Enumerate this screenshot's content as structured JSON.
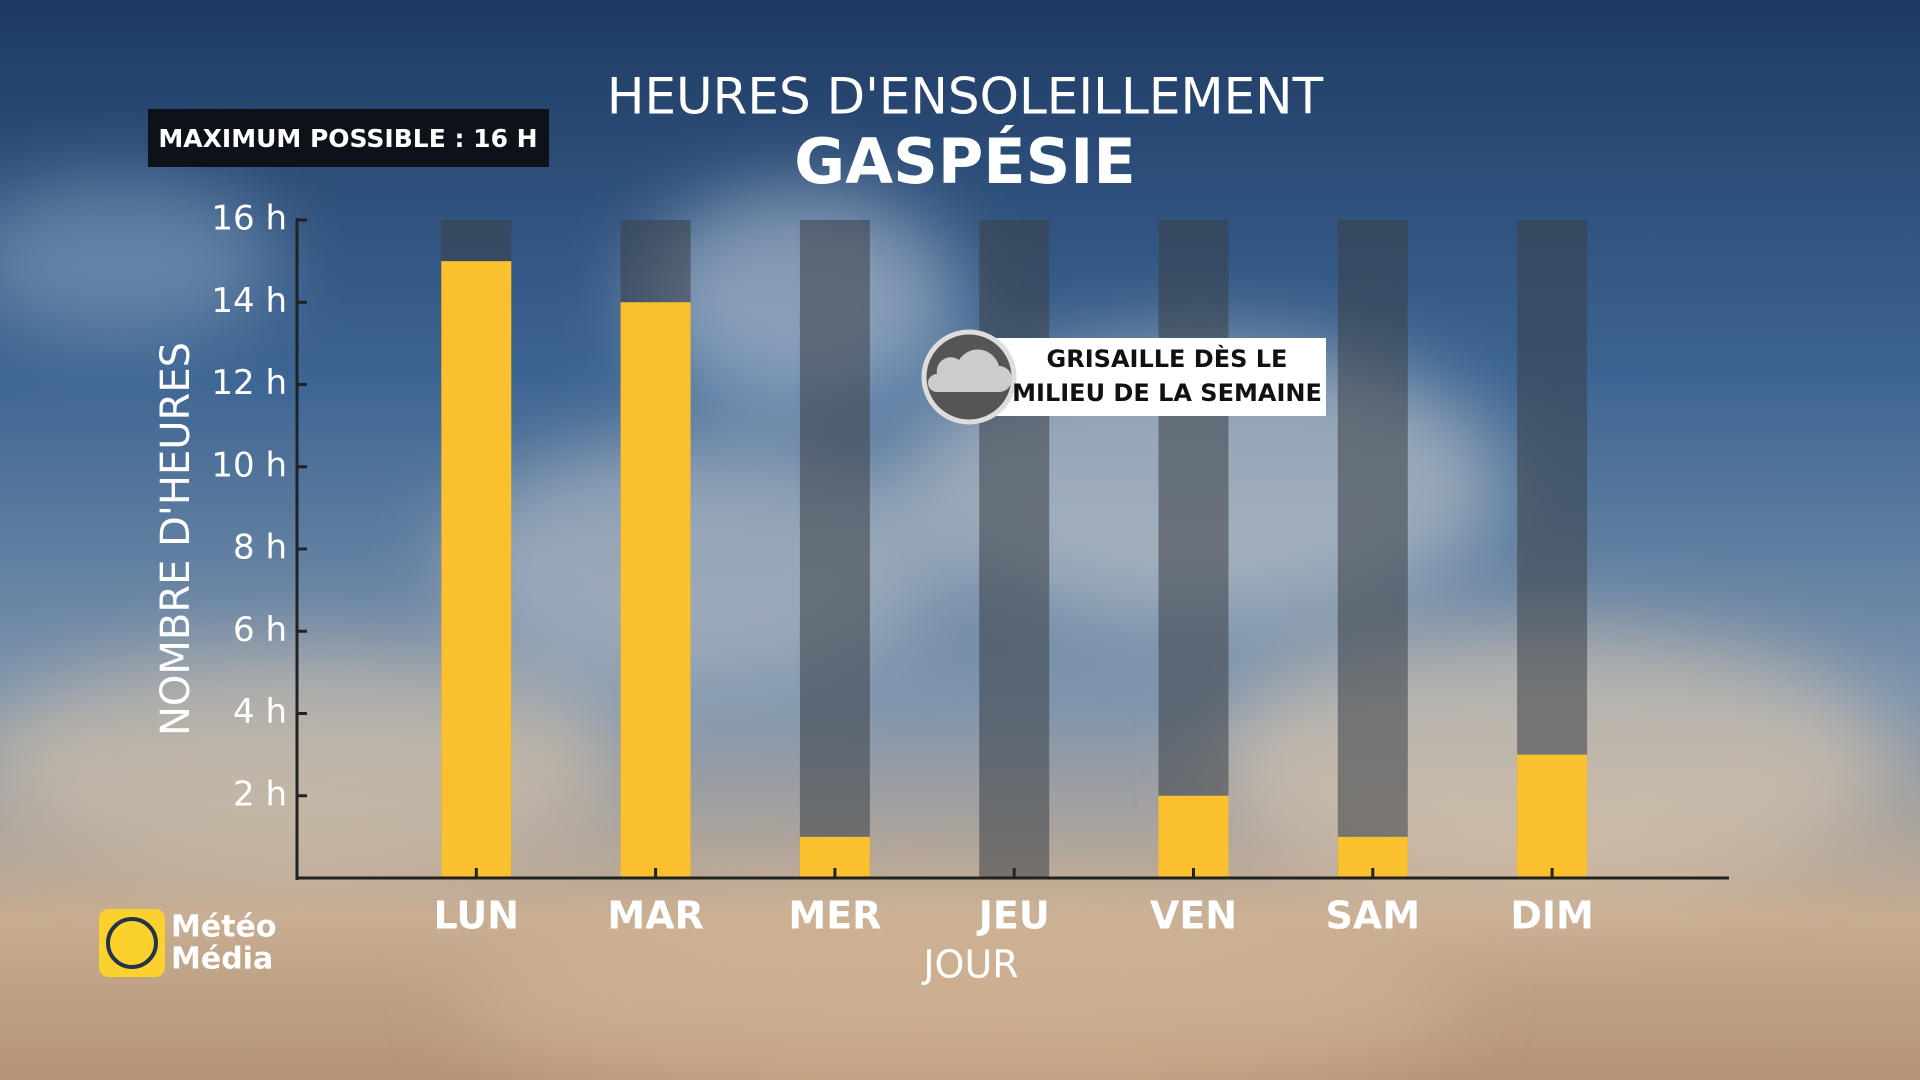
{
  "chart_data": {
    "type": "bar",
    "title": "HEURES D'ENSOLEILLEMENT",
    "subtitle": "GASPÉSIE",
    "badge": "MAXIMUM POSSIBLE : 16 H",
    "annotation": [
      "GRISAILLE DÈS LE",
      "MILIEU DE LA SEMAINE"
    ],
    "x_label": "JOUR",
    "y_label": "NOMBRE D'HEURES",
    "categories": [
      "LUN",
      "MAR",
      "MER",
      "JEU",
      "VEN",
      "SAM",
      "DIM"
    ],
    "values": [
      15,
      14,
      1,
      0,
      2,
      1,
      3
    ],
    "color": "#fbc02d",
    "ylim": [
      0,
      16
    ],
    "yticks": [
      {
        "value": 2,
        "label": "2 h"
      },
      {
        "value": 4,
        "label": "4 h"
      },
      {
        "value": 6,
        "label": "6 h"
      },
      {
        "value": 8,
        "label": "8 h"
      },
      {
        "value": 10,
        "label": "10 h"
      },
      {
        "value": 12,
        "label": "12 h"
      },
      {
        "value": 14,
        "label": "14 h"
      },
      {
        "value": 16,
        "label": "16 h"
      }
    ],
    "logo": [
      "Météo",
      "Média"
    ]
  }
}
